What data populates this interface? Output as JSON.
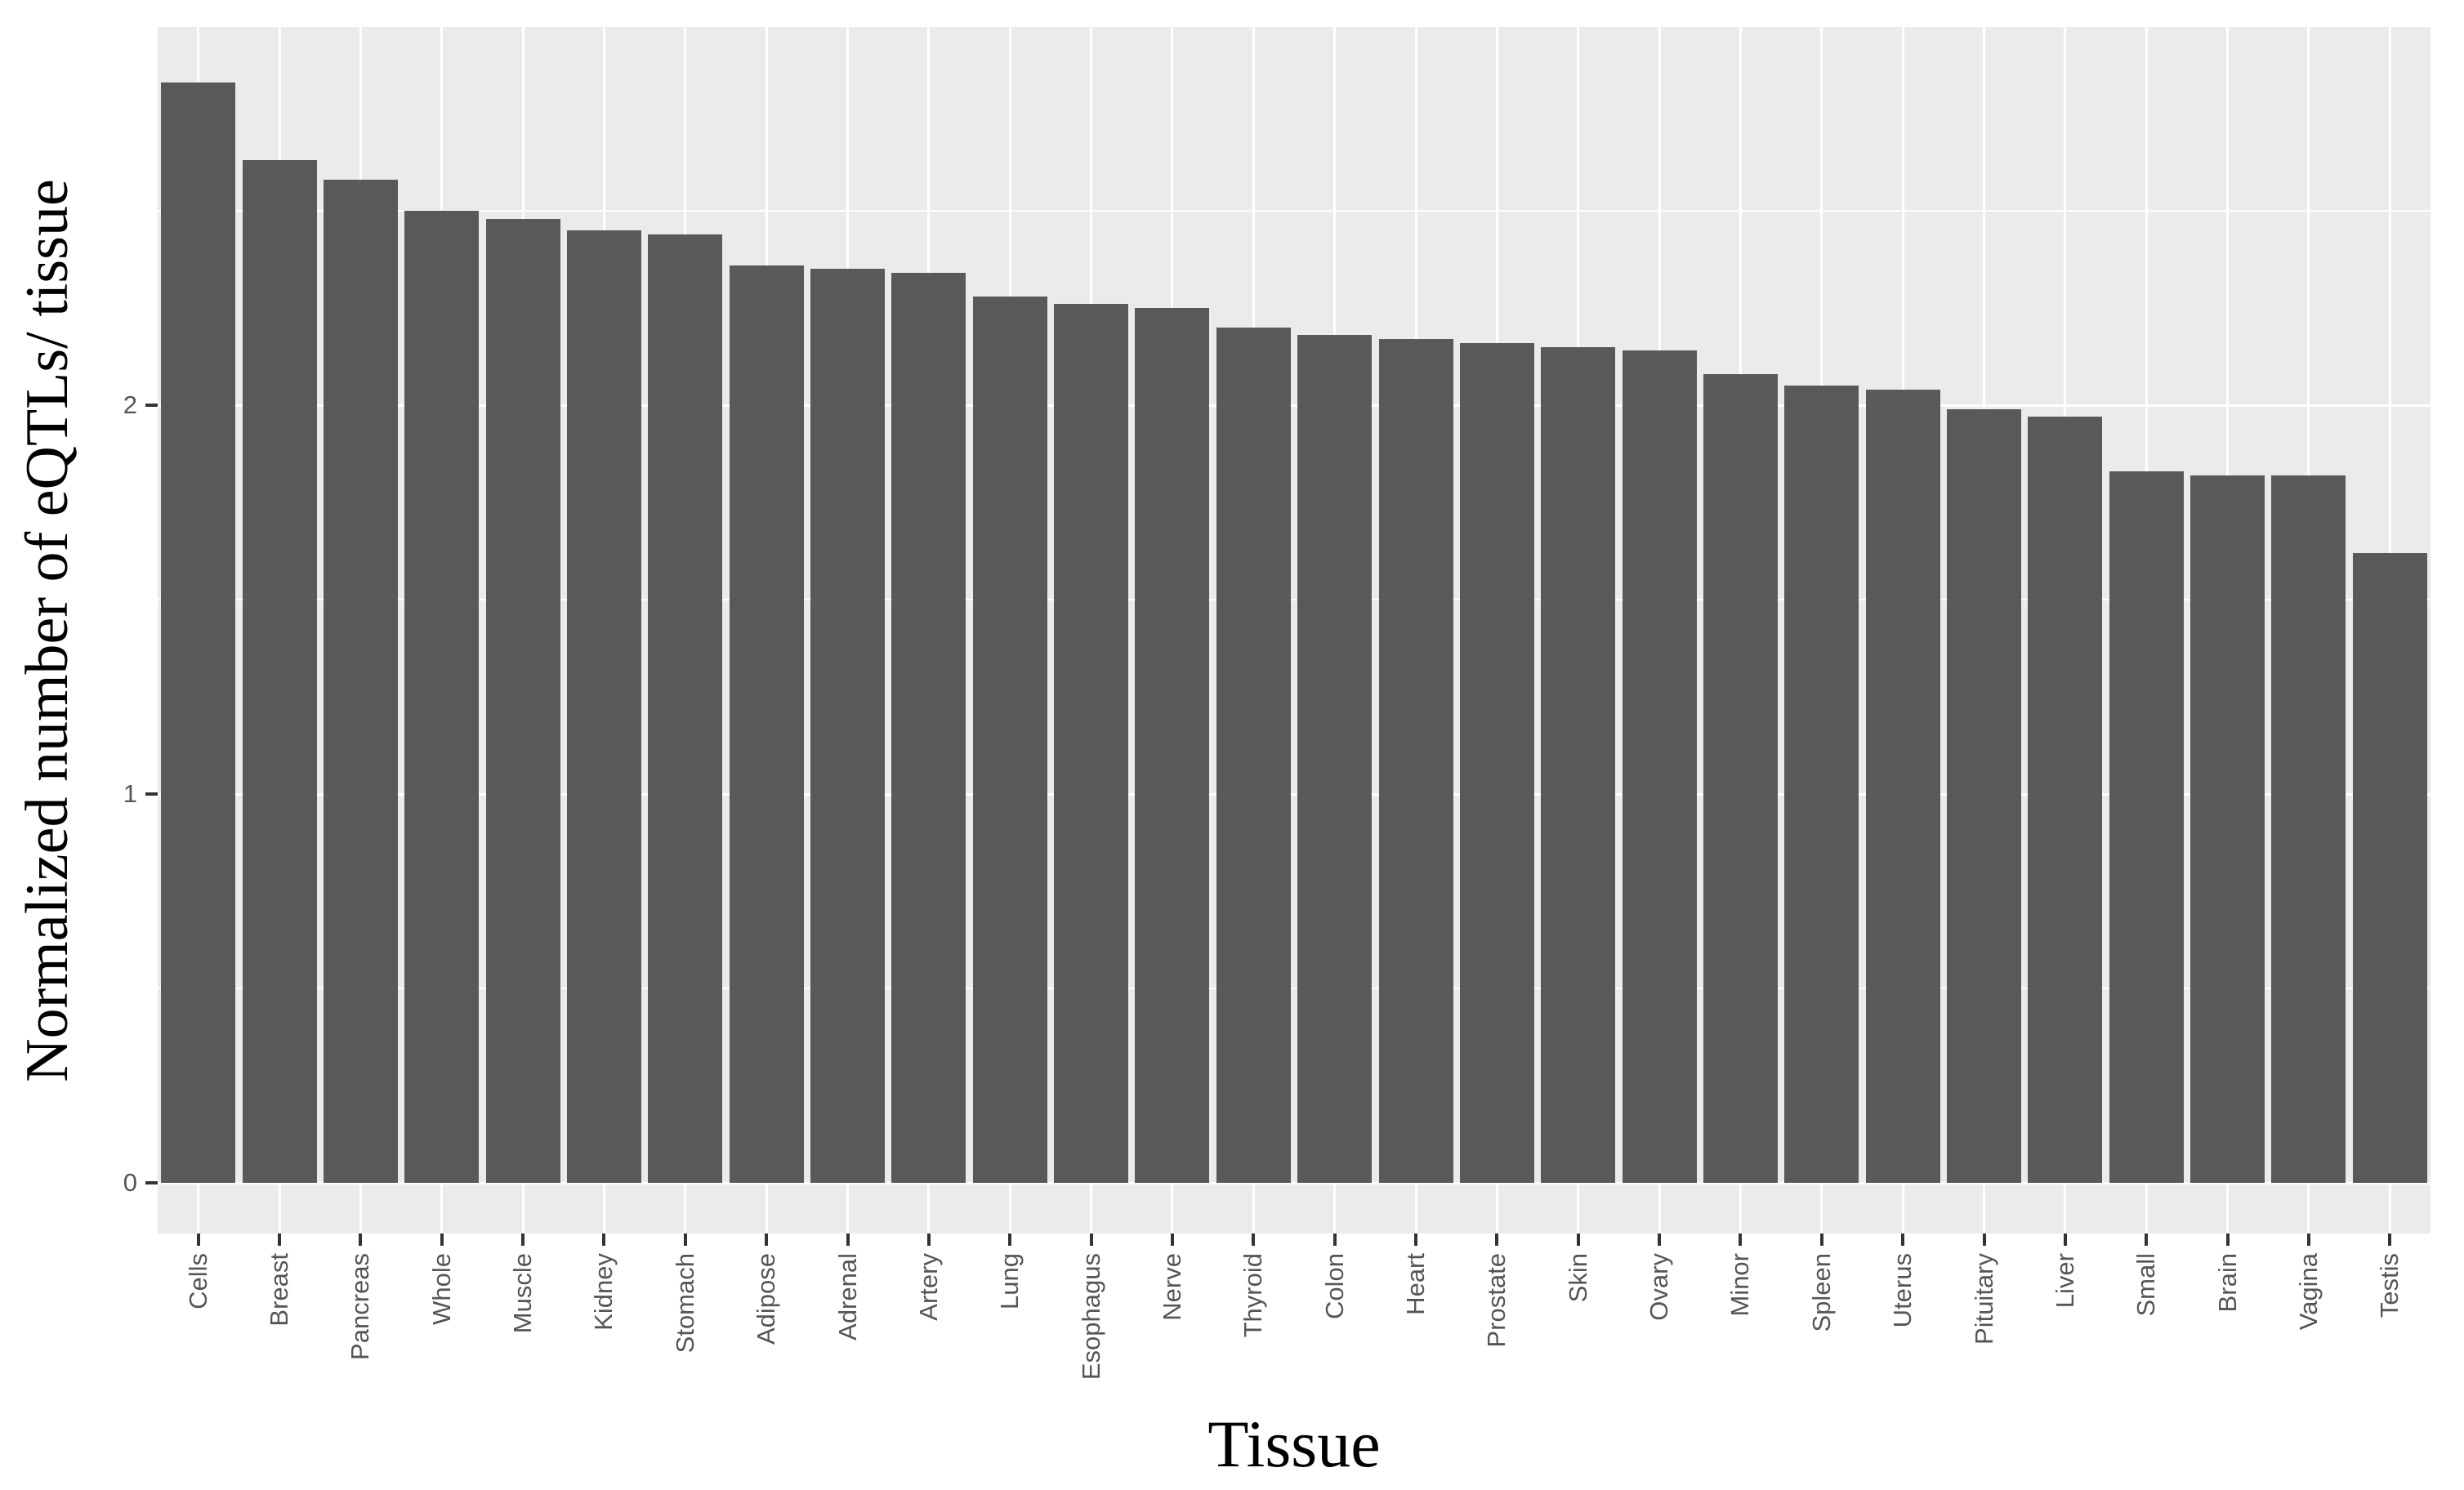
{
  "chart_data": {
    "type": "bar",
    "title": "",
    "xlabel": "Tissue",
    "ylabel": "Normalized number of eQTLs/ tissue",
    "categories": [
      "Cells",
      "Breast",
      "Pancreas",
      "Whole",
      "Muscle",
      "Kidney",
      "Stomach",
      "Adipose",
      "Adrenal",
      "Artery",
      "Lung",
      "Esophagus",
      "Nerve",
      "Thyroid",
      "Colon",
      "Heart",
      "Prostate",
      "Skin",
      "Ovary",
      "Minor",
      "Spleen",
      "Uterus",
      "Pituitary",
      "Liver",
      "Small",
      "Brain",
      "Vagina",
      "Testis"
    ],
    "values": [
      2.83,
      2.63,
      2.58,
      2.5,
      2.48,
      2.45,
      2.44,
      2.36,
      2.35,
      2.34,
      2.28,
      2.26,
      2.25,
      2.2,
      2.18,
      2.17,
      2.16,
      2.15,
      2.14,
      2.08,
      2.05,
      2.04,
      1.99,
      1.97,
      1.83,
      1.82,
      1.82,
      1.62
    ],
    "y_ticks": [
      0,
      1,
      2
    ],
    "y_minor_gridlines": [
      0.5,
      1.5,
      2.5
    ],
    "ylim": [
      0,
      3
    ],
    "grid": "on",
    "legend": "none",
    "colors": {
      "bar_fill": "#595959",
      "panel_background": "#EBEBEB",
      "gridline": "#FFFFFF",
      "tick_mark": "#333333",
      "axis_text": "#555555",
      "axis_title": "#000000",
      "figure_background": "#FFFFFF"
    }
  }
}
